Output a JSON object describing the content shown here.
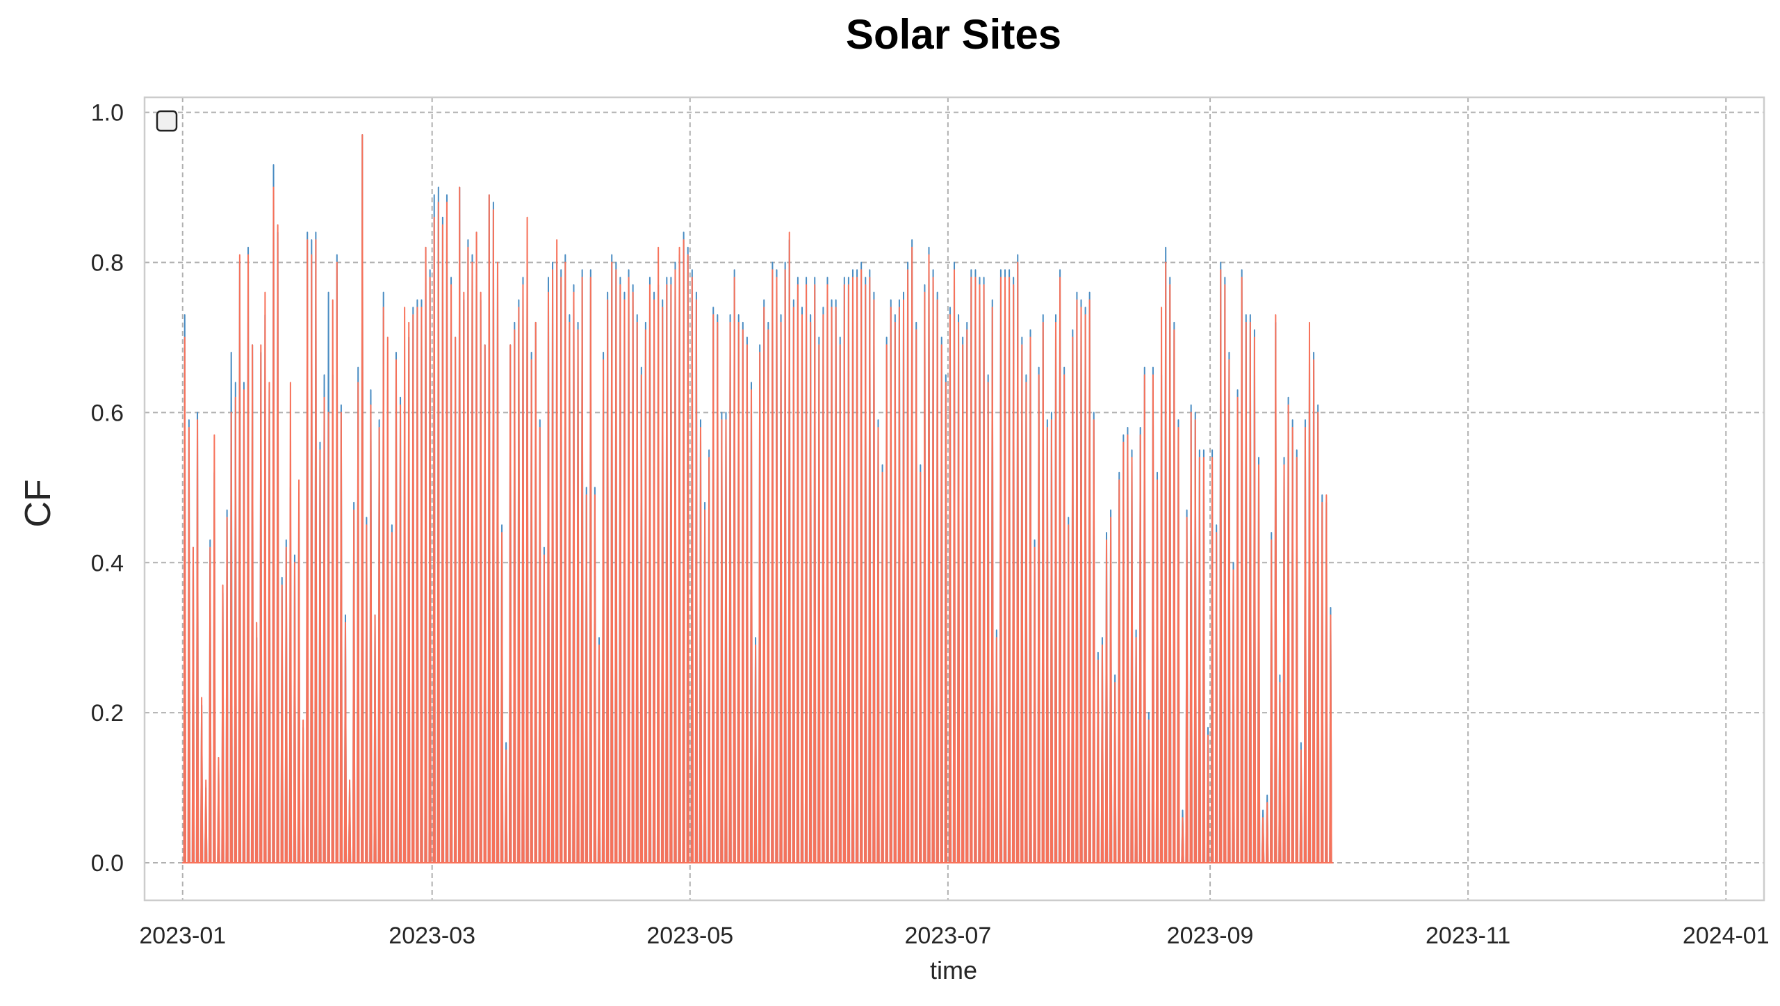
{
  "chart_data": {
    "type": "area",
    "title": "Solar Sites",
    "xlabel": "time",
    "ylabel": "CF",
    "x_start": "2023-01-01",
    "x_end": "2024-01-01",
    "x_ticks": [
      "2023-01",
      "2023-03",
      "2023-05",
      "2023-07",
      "2023-09",
      "2023-11",
      "2024-01"
    ],
    "y_ticks": [
      "0.0",
      "0.2",
      "0.4",
      "0.6",
      "0.8",
      "1.0"
    ],
    "ylim": [
      -0.05,
      1.02
    ],
    "grid": true,
    "legend": "top-left, empty",
    "series": [
      {
        "color": "#4a8cc2",
        "daily_peak": [
          0.73,
          0.59,
          0.42,
          0.6,
          0.21,
          0.1,
          0.43,
          0.52,
          0.13,
          0.36,
          0.47,
          0.68,
          0.64,
          0.8,
          0.64,
          0.82,
          0.69,
          0.3,
          0.68,
          0.73,
          0.63,
          0.93,
          0.84,
          0.38,
          0.43,
          0.5,
          0.41,
          0.48,
          0.18,
          0.84,
          0.83,
          0.84,
          0.56,
          0.65,
          0.76,
          0.65,
          0.81,
          0.61,
          0.33,
          0.1,
          0.48,
          0.66,
          0.97,
          0.46,
          0.63,
          0.33,
          0.59,
          0.76,
          0.63,
          0.45,
          0.68,
          0.62,
          0.63,
          0.7,
          0.74,
          0.75,
          0.75,
          0.82,
          0.79,
          0.89,
          0.9,
          0.86,
          0.89,
          0.78,
          0.7,
          0.9,
          0.75,
          0.83,
          0.81,
          0.84,
          0.75,
          0.69,
          0.89,
          0.88,
          0.8,
          0.45,
          0.16,
          0.69,
          0.72,
          0.75,
          0.78,
          0.8,
          0.68,
          0.72,
          0.59,
          0.42,
          0.78,
          0.8,
          0.8,
          0.79,
          0.81,
          0.73,
          0.77,
          0.72,
          0.79,
          0.5,
          0.79,
          0.5,
          0.3,
          0.68,
          0.76,
          0.81,
          0.8,
          0.78,
          0.76,
          0.79,
          0.77,
          0.73,
          0.66,
          0.72,
          0.78,
          0.76,
          0.77,
          0.75,
          0.78,
          0.78,
          0.8,
          0.81,
          0.84,
          0.82,
          0.79,
          0.76,
          0.59,
          0.48,
          0.55,
          0.74,
          0.73,
          0.6,
          0.6,
          0.73,
          0.79,
          0.73,
          0.72,
          0.7,
          0.64,
          0.3,
          0.69,
          0.75,
          0.72,
          0.8,
          0.79,
          0.73,
          0.8,
          0.83,
          0.75,
          0.78,
          0.74,
          0.78,
          0.73,
          0.78,
          0.7,
          0.74,
          0.78,
          0.75,
          0.75,
          0.7,
          0.78,
          0.78,
          0.79,
          0.79,
          0.8,
          0.78,
          0.79,
          0.76,
          0.59,
          0.53,
          0.7,
          0.75,
          0.73,
          0.75,
          0.76,
          0.8,
          0.83,
          0.72,
          0.53,
          0.77,
          0.82,
          0.79,
          0.76,
          0.7,
          0.65,
          0.74,
          0.8,
          0.73,
          0.7,
          0.72,
          0.79,
          0.79,
          0.78,
          0.78,
          0.65,
          0.75,
          0.31,
          0.79,
          0.79,
          0.79,
          0.78,
          0.81,
          0.7,
          0.65,
          0.71,
          0.43,
          0.66,
          0.73,
          0.59,
          0.6,
          0.73,
          0.79,
          0.66,
          0.46,
          0.71,
          0.76,
          0.75,
          0.74,
          0.76,
          0.6,
          0.28,
          0.3,
          0.44,
          0.47,
          0.25,
          0.52,
          0.57,
          0.58,
          0.55,
          0.31,
          0.58,
          0.66,
          0.2,
          0.66,
          0.52,
          0.65,
          0.82,
          0.78,
          0.72,
          0.59,
          0.07,
          0.47,
          0.61,
          0.6,
          0.55,
          0.55,
          0.18,
          0.55,
          0.45,
          0.8,
          0.78,
          0.68,
          0.4,
          0.63,
          0.79,
          0.73,
          0.73,
          0.71,
          0.54,
          0.07,
          0.09,
          0.44,
          0.72,
          0.25,
          0.54,
          0.62,
          0.59,
          0.55,
          0.16,
          0.59,
          0.68,
          0.68,
          0.61,
          0.49,
          0.48,
          0.34
        ]
      },
      {
        "color": "#f7725a",
        "daily_peak": [
          0.7,
          0.58,
          0.42,
          0.59,
          0.22,
          0.11,
          0.42,
          0.57,
          0.14,
          0.37,
          0.46,
          0.6,
          0.62,
          0.81,
          0.63,
          0.81,
          0.69,
          0.32,
          0.69,
          0.76,
          0.64,
          0.9,
          0.85,
          0.37,
          0.42,
          0.64,
          0.4,
          0.51,
          0.19,
          0.83,
          0.81,
          0.83,
          0.55,
          0.62,
          0.6,
          0.75,
          0.8,
          0.6,
          0.32,
          0.11,
          0.47,
          0.64,
          0.97,
          0.45,
          0.61,
          0.33,
          0.58,
          0.74,
          0.7,
          0.44,
          0.67,
          0.61,
          0.74,
          0.72,
          0.73,
          0.74,
          0.74,
          0.82,
          0.78,
          0.86,
          0.88,
          0.85,
          0.88,
          0.77,
          0.7,
          0.9,
          0.76,
          0.82,
          0.8,
          0.84,
          0.76,
          0.69,
          0.89,
          0.87,
          0.8,
          0.44,
          0.15,
          0.69,
          0.71,
          0.74,
          0.77,
          0.86,
          0.67,
          0.72,
          0.58,
          0.41,
          0.76,
          0.79,
          0.83,
          0.78,
          0.8,
          0.72,
          0.76,
          0.71,
          0.78,
          0.49,
          0.78,
          0.49,
          0.29,
          0.67,
          0.75,
          0.8,
          0.79,
          0.77,
          0.75,
          0.78,
          0.76,
          0.72,
          0.65,
          0.71,
          0.77,
          0.75,
          0.82,
          0.74,
          0.77,
          0.77,
          0.79,
          0.82,
          0.83,
          0.81,
          0.78,
          0.75,
          0.58,
          0.47,
          0.54,
          0.73,
          0.72,
          0.59,
          0.59,
          0.72,
          0.78,
          0.72,
          0.71,
          0.69,
          0.63,
          0.29,
          0.68,
          0.74,
          0.71,
          0.79,
          0.78,
          0.72,
          0.79,
          0.84,
          0.74,
          0.77,
          0.73,
          0.77,
          0.72,
          0.77,
          0.69,
          0.73,
          0.77,
          0.74,
          0.74,
          0.69,
          0.77,
          0.77,
          0.78,
          0.78,
          0.79,
          0.77,
          0.78,
          0.75,
          0.58,
          0.52,
          0.69,
          0.74,
          0.72,
          0.74,
          0.75,
          0.79,
          0.82,
          0.71,
          0.52,
          0.76,
          0.81,
          0.78,
          0.75,
          0.69,
          0.64,
          0.73,
          0.79,
          0.72,
          0.69,
          0.71,
          0.78,
          0.78,
          0.77,
          0.77,
          0.64,
          0.74,
          0.3,
          0.78,
          0.78,
          0.78,
          0.77,
          0.8,
          0.69,
          0.64,
          0.7,
          0.42,
          0.65,
          0.72,
          0.58,
          0.59,
          0.72,
          0.78,
          0.65,
          0.45,
          0.7,
          0.75,
          0.74,
          0.73,
          0.75,
          0.59,
          0.27,
          0.29,
          0.43,
          0.46,
          0.24,
          0.51,
          0.56,
          0.57,
          0.54,
          0.3,
          0.57,
          0.65,
          0.19,
          0.65,
          0.51,
          0.74,
          0.8,
          0.77,
          0.71,
          0.58,
          0.06,
          0.46,
          0.6,
          0.59,
          0.54,
          0.54,
          0.17,
          0.54,
          0.44,
          0.79,
          0.77,
          0.67,
          0.39,
          0.62,
          0.78,
          0.72,
          0.72,
          0.7,
          0.53,
          0.06,
          0.08,
          0.43,
          0.73,
          0.24,
          0.53,
          0.61,
          0.58,
          0.54,
          0.15,
          0.58,
          0.72,
          0.67,
          0.6,
          0.48,
          0.49,
          0.33
        ]
      }
    ]
  }
}
